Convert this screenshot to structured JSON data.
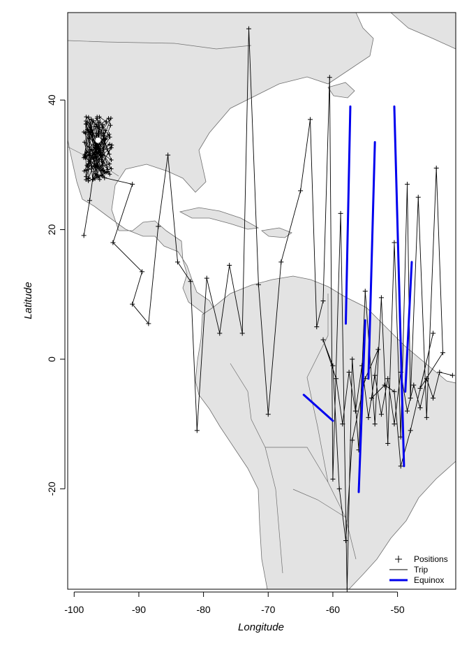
{
  "chart_data": {
    "type": "scatter",
    "title": "",
    "xlabel": "Longitude",
    "ylabel": "Latitude",
    "xlim": [
      -101,
      -41
    ],
    "ylim": [
      -35.5,
      53.5
    ],
    "xticks": [
      -100,
      -90,
      -80,
      -70,
      -60,
      -50
    ],
    "yticks": [
      -20,
      0,
      20,
      40
    ],
    "grid": false,
    "legend_position": "bottom-right",
    "colors": {
      "land": "#e3e3e3",
      "coast": "#6e6e6e",
      "trip": "#000000",
      "equinox": "#0000ee",
      "positions": "#000000"
    },
    "legend": [
      {
        "label": "Positions",
        "symbol": "plus"
      },
      {
        "label": "Trip",
        "symbol": "thin-line"
      },
      {
        "label": "Equinox",
        "symbol": "thick-blue-line"
      }
    ],
    "series": [
      {
        "name": "Trip",
        "points": [
          [
            -98.5,
            19.1
          ],
          [
            -97.6,
            24.5
          ],
          [
            -96.8,
            30.2
          ],
          [
            -95.3,
            28.0
          ],
          [
            -91.0,
            27.0
          ],
          [
            -94.0,
            18.0
          ],
          [
            -89.5,
            13.5
          ],
          [
            -91.0,
            8.5
          ],
          [
            -88.5,
            5.5
          ],
          [
            -87.0,
            20.5
          ],
          [
            -85.5,
            31.5
          ],
          [
            -84.0,
            15.0
          ],
          [
            -82.0,
            12.0
          ],
          [
            -81.0,
            -11.0
          ],
          [
            -79.5,
            12.5
          ],
          [
            -77.5,
            4.0
          ],
          [
            -76.0,
            14.5
          ],
          [
            -74.0,
            4.0
          ],
          [
            -73.0,
            51.0
          ],
          [
            -71.5,
            11.5
          ],
          [
            -70.0,
            -8.5
          ],
          [
            -68.0,
            15.0
          ],
          [
            -65.0,
            26.0
          ],
          [
            -63.5,
            37.0
          ],
          [
            -62.5,
            5.0
          ],
          [
            -61.5,
            9.0
          ],
          [
            -60.5,
            43.5
          ],
          [
            -60.0,
            -18.5
          ],
          [
            -58.8,
            22.5
          ],
          [
            -57.8,
            -35.5
          ],
          [
            -57.0,
            0.0
          ],
          [
            -56.0,
            -14.0
          ],
          [
            -55.0,
            10.5
          ],
          [
            -53.5,
            -10.0
          ],
          [
            -52.5,
            9.5
          ],
          [
            -51.5,
            -13.0
          ],
          [
            -50.5,
            18.0
          ],
          [
            -49.5,
            -12.0
          ],
          [
            -48.5,
            27.0
          ],
          [
            -48.0,
            -6.0
          ],
          [
            -46.8,
            25.0
          ],
          [
            -45.5,
            -9.0
          ],
          [
            -44.0,
            29.5
          ],
          [
            -43.0,
            1.0
          ],
          [
            -46.5,
            -4.5
          ],
          [
            -44.5,
            4.0
          ],
          [
            -48.0,
            -11.0
          ],
          [
            -49.5,
            -16.5
          ],
          [
            -50.5,
            -5.0
          ],
          [
            -52.0,
            -4.0
          ],
          [
            -54.0,
            -6.0
          ],
          [
            -53.0,
            1.5
          ],
          [
            -55.0,
            -3.0
          ],
          [
            -57.0,
            -12.5
          ],
          [
            -58.0,
            -28.0
          ],
          [
            -59.0,
            -20.0
          ],
          [
            -60.0,
            -1.0
          ],
          [
            -61.5,
            3.0
          ],
          [
            -59.5,
            -3.0
          ],
          [
            -58.5,
            -10.0
          ],
          [
            -57.5,
            -2.0
          ],
          [
            -56.5,
            -8.0
          ],
          [
            -55.5,
            -1.0
          ],
          [
            -54.5,
            -9.0
          ],
          [
            -53.5,
            -2.5
          ],
          [
            -52.5,
            -8.5
          ],
          [
            -51.5,
            -3.0
          ],
          [
            -50.5,
            -10.0
          ],
          [
            -49.5,
            -2.0
          ],
          [
            -48.5,
            -8.0
          ],
          [
            -47.5,
            -4.0
          ],
          [
            -46.5,
            -7.5
          ],
          [
            -45.5,
            -3.0
          ],
          [
            -44.5,
            -6.0
          ],
          [
            -43.5,
            -2.0
          ],
          [
            -41.5,
            -2.5
          ]
        ]
      },
      {
        "name": "Equinox",
        "segments": [
          [
            [
              -64.5,
              -5.5
            ],
            [
              -60.0,
              -9.5
            ]
          ],
          [
            [
              -58.0,
              5.5
            ],
            [
              -57.3,
              39.0
            ]
          ],
          [
            [
              -56.0,
              -20.5
            ],
            [
              -55.0,
              6.0
            ]
          ],
          [
            [
              -54.5,
              -3.0
            ],
            [
              -53.5,
              33.5
            ]
          ],
          [
            [
              -50.5,
              39.0
            ],
            [
              -49.0,
              -16.5
            ]
          ],
          [
            [
              -48.8,
              -5.0
            ],
            [
              -47.8,
              15.0
            ]
          ]
        ]
      }
    ]
  }
}
